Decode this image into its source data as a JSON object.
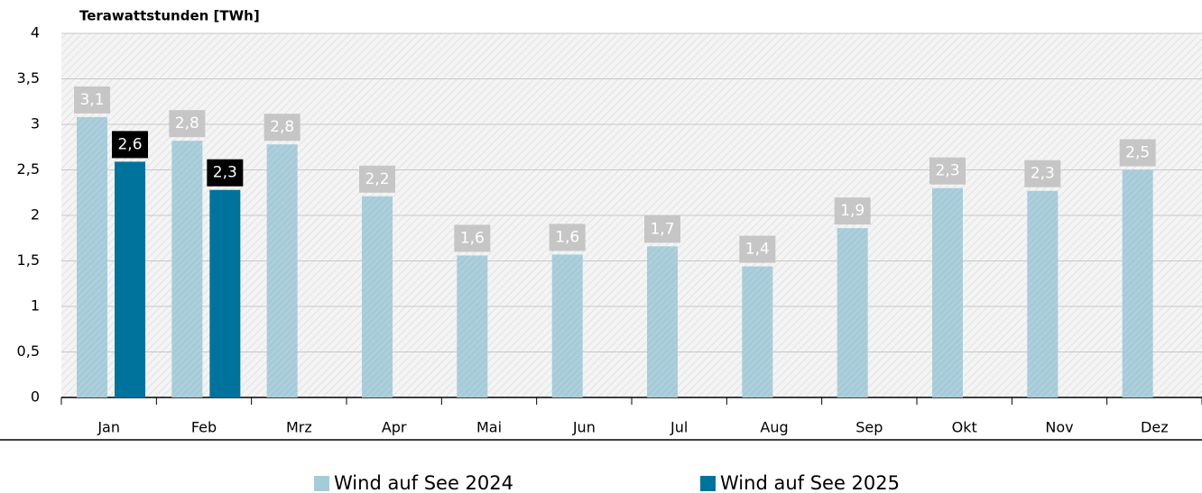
{
  "chart_data": {
    "type": "bar",
    "y_label": "Terawattstunden [TWh]",
    "categories": [
      "Jan",
      "Feb",
      "Mrz",
      "Apr",
      "Mai",
      "Jun",
      "Jul",
      "Aug",
      "Sep",
      "Okt",
      "Nov",
      "Dez"
    ],
    "series": [
      {
        "name": "Wind auf See 2024",
        "color": "#a6cbd8",
        "label_color": "#c6c6c6",
        "values": [
          3.08,
          2.82,
          2.78,
          2.21,
          1.56,
          1.57,
          1.66,
          1.44,
          1.86,
          2.3,
          2.27,
          2.5
        ],
        "value_labels": [
          "3,1",
          "2,8",
          "2,8",
          "2,2",
          "1,6",
          "1,6",
          "1,7",
          "1,4",
          "1,9",
          "2,3",
          "2,3",
          "2,5"
        ]
      },
      {
        "name": "Wind auf See 2025",
        "color": "#00739d",
        "label_color": "#000000",
        "values": [
          2.59,
          2.28,
          null,
          null,
          null,
          null,
          null,
          null,
          null,
          null,
          null,
          null
        ],
        "value_labels": [
          "2,6",
          "2,3",
          null,
          null,
          null,
          null,
          null,
          null,
          null,
          null,
          null,
          null
        ]
      }
    ],
    "ylim": [
      0,
      4
    ],
    "yticks": [
      0,
      {
        "value": 0.5,
        "label": "0,5"
      },
      1,
      {
        "value": 1.5,
        "label": "1,5"
      },
      2,
      {
        "value": 2.5,
        "label": "2,5"
      },
      3,
      {
        "value": 3.5,
        "label": "3,5"
      },
      4
    ],
    "grid": true,
    "legend": "bottom"
  }
}
